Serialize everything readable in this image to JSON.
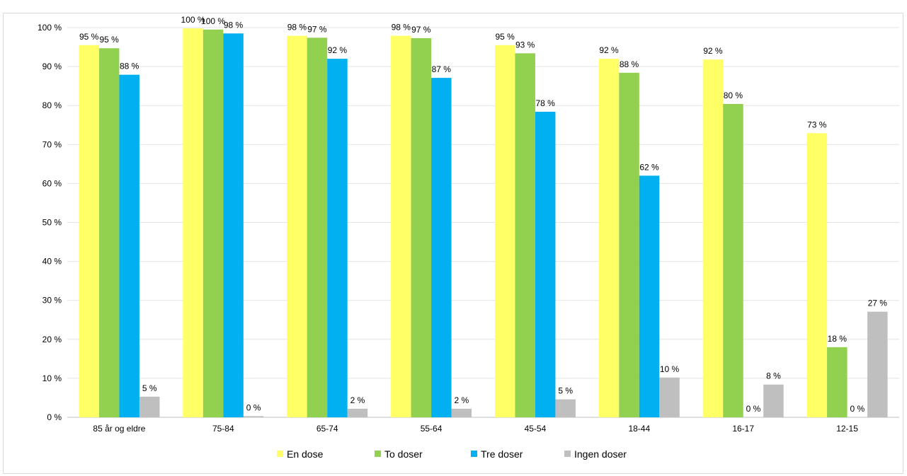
{
  "chart_data": {
    "type": "bar",
    "categories": [
      "85 år og eldre",
      "75-84",
      "65-74",
      "55-64",
      "45-54",
      "18-44",
      "16-17",
      "12-15"
    ],
    "series": [
      {
        "name": "En dose",
        "color": "#ffff66",
        "values": [
          95.5,
          99.8,
          97.9,
          97.9,
          95.5,
          92.0,
          91.8,
          72.9
        ],
        "labels": [
          "95 %",
          "100 %",
          "98 %",
          "98 %",
          "95 %",
          "92 %",
          "92 %",
          "73 %"
        ]
      },
      {
        "name": "To doser",
        "color": "#92d050",
        "values": [
          94.7,
          99.5,
          97.4,
          97.3,
          93.4,
          88.4,
          80.4,
          18.0
        ],
        "labels": [
          "95 %",
          "100 %",
          "97 %",
          "97 %",
          "93 %",
          "88 %",
          "80 %",
          "18 %"
        ]
      },
      {
        "name": "Tre doser",
        "color": "#00b0f0",
        "values": [
          87.9,
          98.5,
          92.0,
          87.1,
          78.4,
          62.0,
          0,
          0
        ],
        "labels": [
          "88 %",
          "98 %",
          "92 %",
          "87 %",
          "78 %",
          "62 %",
          "0 %",
          "0 %"
        ]
      },
      {
        "name": "Ingen doser",
        "color": "#bfbfbf",
        "values": [
          5.3,
          0.3,
          2.2,
          2.2,
          4.6,
          10.2,
          8.4,
          27.1
        ],
        "labels": [
          "5 %",
          "0 %",
          "2 %",
          "2 %",
          "5 %",
          "10 %",
          "8 %",
          "27 %"
        ]
      }
    ],
    "ylim": [
      0,
      100
    ],
    "yticks": [
      "0 %",
      "10 %",
      "20 %",
      "30 %",
      "40 %",
      "50 %",
      "60 %",
      "70 %",
      "80 %",
      "90 %",
      "100 %"
    ],
    "grid": true,
    "legend": "bottom"
  }
}
